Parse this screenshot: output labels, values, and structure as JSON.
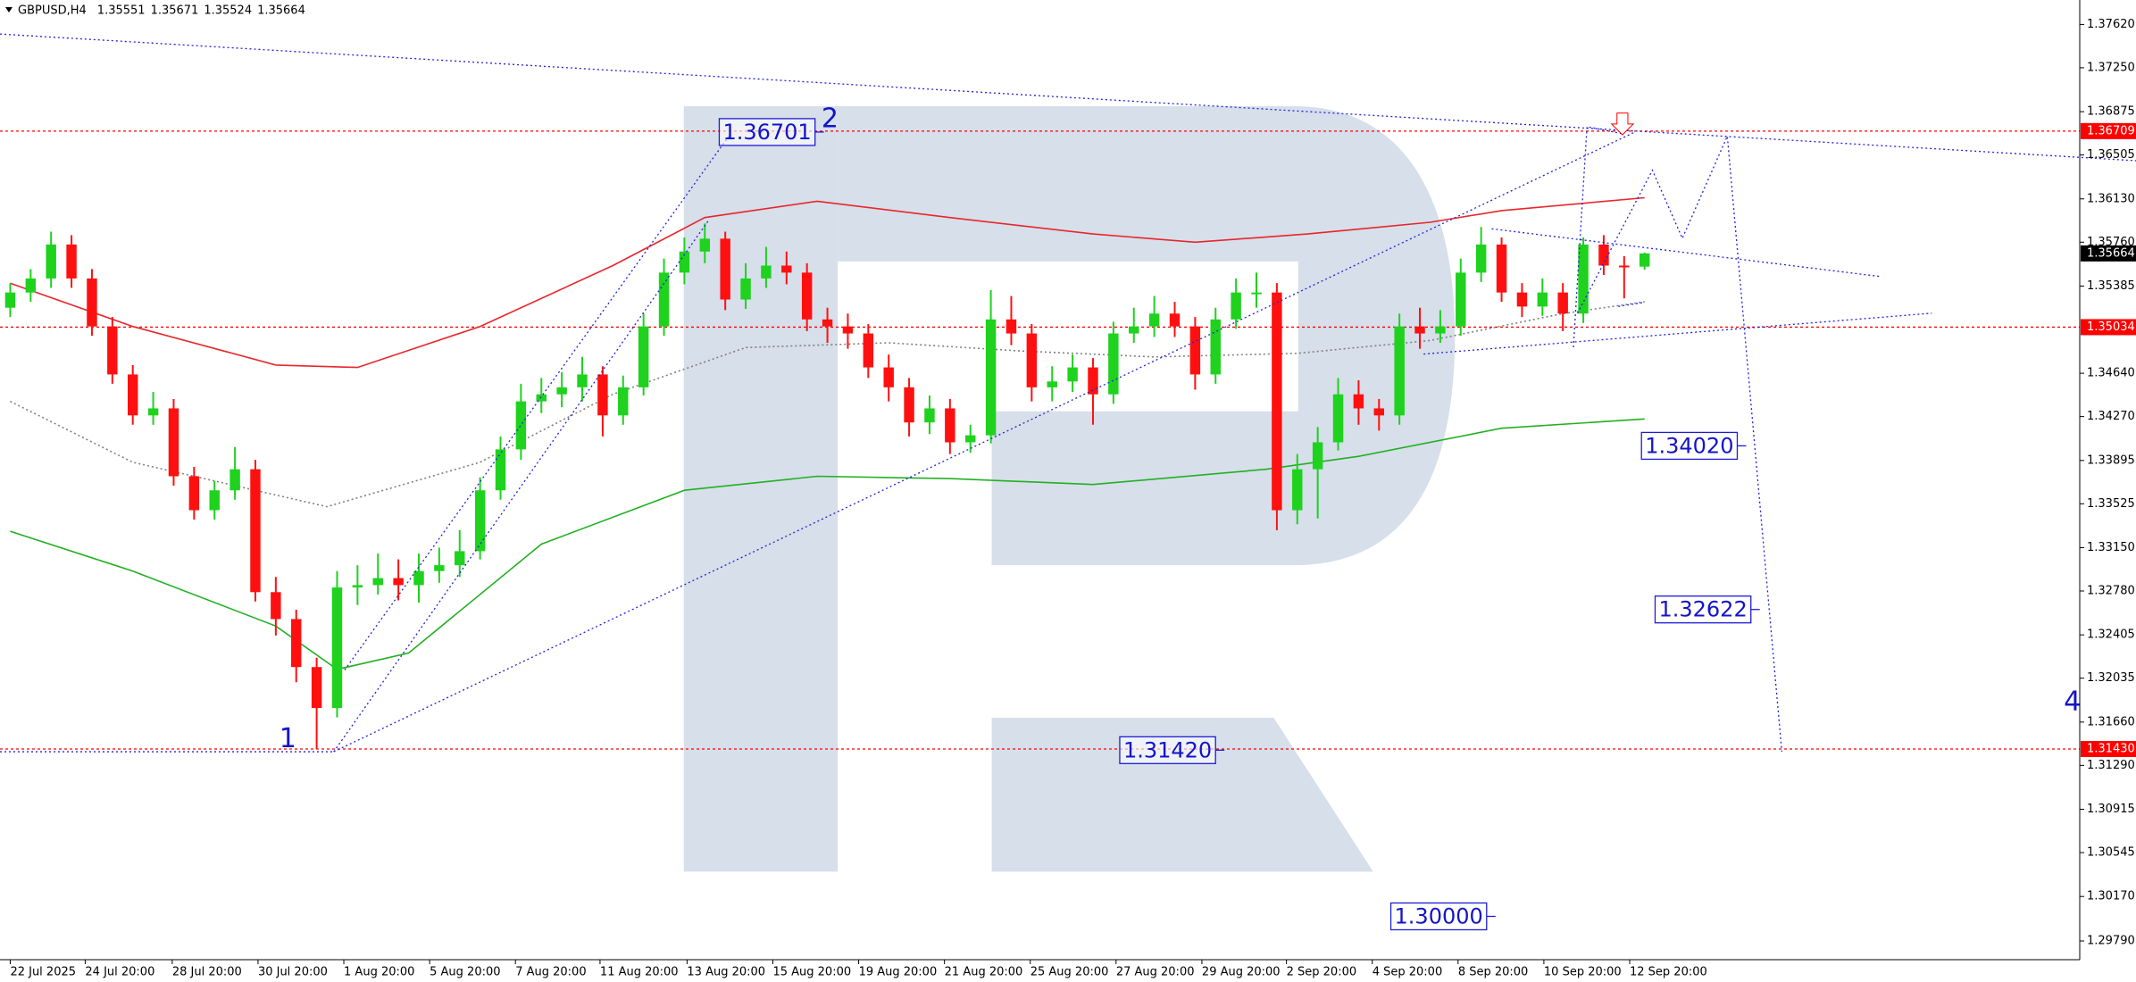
{
  "chart_data": {
    "type": "candlestick",
    "symbol": "GBPUSD,H4",
    "up_color": "#1ed21e",
    "down_color": "#ff1010",
    "open": [
      1.352,
      1.3533,
      1.3545,
      1.3574,
      1.3545,
      1.3504,
      1.3463,
      1.3428,
      1.3434,
      1.3376,
      1.3347,
      1.3364,
      1.3382,
      1.3277,
      1.3254,
      1.3213,
      1.3178,
      1.3281,
      1.3283,
      1.3289,
      1.3283,
      1.3295,
      1.33,
      1.3312,
      1.3364,
      1.3399,
      1.344,
      1.3446,
      1.3452,
      1.3463,
      1.3428,
      1.3452,
      1.3504,
      1.355,
      1.3568,
      1.3579,
      1.3527,
      1.3545,
      1.3556,
      1.355,
      1.351,
      1.3504,
      1.3498,
      1.3469,
      1.3452,
      1.3422,
      1.3434,
      1.3405,
      1.3411,
      1.351,
      1.3498,
      1.3452,
      1.3457,
      1.3469,
      1.3446,
      1.3498,
      1.3504,
      1.3515,
      1.3504,
      1.3463,
      1.351,
      1.3533,
      1.3533,
      1.3347,
      1.3382,
      1.3405,
      1.3446,
      1.3434,
      1.3428,
      1.3504,
      1.3498,
      1.3504,
      1.355,
      1.3574,
      1.3533,
      1.3521,
      1.3533,
      1.3515,
      1.3574,
      1.3556,
      1.35551
    ],
    "high": [
      1.3541,
      1.3553,
      1.3585,
      1.3582,
      1.3553,
      1.3512,
      1.3471,
      1.3448,
      1.3442,
      1.3384,
      1.3372,
      1.3401,
      1.339,
      1.329,
      1.3262,
      1.3221,
      1.3295,
      1.33,
      1.331,
      1.3305,
      1.331,
      1.3315,
      1.333,
      1.3375,
      1.341,
      1.3455,
      1.346,
      1.3465,
      1.3478,
      1.347,
      1.3462,
      1.3515,
      1.3562,
      1.358,
      1.3592,
      1.3585,
      1.3558,
      1.3572,
      1.3568,
      1.3558,
      1.352,
      1.3515,
      1.3506,
      1.348,
      1.346,
      1.3445,
      1.3442,
      1.342,
      1.3535,
      1.353,
      1.3506,
      1.347,
      1.348,
      1.3477,
      1.3508,
      1.352,
      1.353,
      1.3525,
      1.3512,
      1.352,
      1.3545,
      1.355,
      1.3541,
      1.3395,
      1.3418,
      1.346,
      1.3458,
      1.3442,
      1.3515,
      1.352,
      1.3518,
      1.3562,
      1.3589,
      1.358,
      1.3541,
      1.3545,
      1.3541,
      1.358,
      1.3582,
      1.3564,
      1.35671
    ],
    "low": [
      1.3512,
      1.3525,
      1.3537,
      1.3537,
      1.3496,
      1.3455,
      1.342,
      1.342,
      1.3368,
      1.3339,
      1.3339,
      1.3356,
      1.3269,
      1.324,
      1.32,
      1.3143,
      1.317,
      1.3266,
      1.3275,
      1.327,
      1.3268,
      1.3285,
      1.329,
      1.3305,
      1.3356,
      1.339,
      1.343,
      1.3435,
      1.344,
      1.341,
      1.342,
      1.3445,
      1.3496,
      1.354,
      1.3558,
      1.3518,
      1.3519,
      1.3537,
      1.354,
      1.35,
      1.349,
      1.3485,
      1.346,
      1.344,
      1.341,
      1.3412,
      1.3395,
      1.3396,
      1.3404,
      1.3488,
      1.344,
      1.344,
      1.3448,
      1.342,
      1.3438,
      1.349,
      1.3495,
      1.3495,
      1.345,
      1.3455,
      1.3502,
      1.352,
      1.333,
      1.3335,
      1.334,
      1.3398,
      1.342,
      1.3415,
      1.342,
      1.3485,
      1.349,
      1.3496,
      1.3542,
      1.3525,
      1.3512,
      1.3513,
      1.35,
      1.3507,
      1.3548,
      1.3528,
      1.35524
    ],
    "close": [
      1.3533,
      1.3545,
      1.3574,
      1.3545,
      1.3504,
      1.3463,
      1.3428,
      1.3434,
      1.3376,
      1.3347,
      1.3364,
      1.3382,
      1.3277,
      1.3254,
      1.3213,
      1.3178,
      1.3281,
      1.3283,
      1.3289,
      1.3283,
      1.3295,
      1.33,
      1.3312,
      1.3364,
      1.3399,
      1.344,
      1.3446,
      1.3452,
      1.3463,
      1.3428,
      1.3452,
      1.3504,
      1.355,
      1.3568,
      1.3579,
      1.3527,
      1.3545,
      1.3556,
      1.355,
      1.351,
      1.3504,
      1.3498,
      1.3469,
      1.3452,
      1.3422,
      1.3434,
      1.3405,
      1.3411,
      1.351,
      1.3498,
      1.3452,
      1.3457,
      1.3469,
      1.3446,
      1.3498,
      1.3504,
      1.3515,
      1.3504,
      1.3463,
      1.351,
      1.3533,
      1.3533,
      1.3347,
      1.3382,
      1.3405,
      1.3446,
      1.3434,
      1.3428,
      1.3504,
      1.3498,
      1.3504,
      1.355,
      1.3574,
      1.3533,
      1.3521,
      1.3533,
      1.3515,
      1.3574,
      1.3556,
      1.3555,
      1.35664
    ],
    "moving_averages": [
      {
        "color": "#e8262b",
        "style": "solid",
        "x": [
          0,
          6,
          13,
          17,
          23,
          29.5,
          34,
          39.5,
          46,
          53,
          58,
          63.5,
          69.5,
          73,
          80
        ],
        "values": [
          1.3541,
          1.3504,
          1.3471,
          1.3469,
          1.3504,
          1.3556,
          1.3597,
          1.3611,
          1.3597,
          1.3583,
          1.3576,
          1.3583,
          1.3593,
          1.3603,
          1.3614
        ]
      },
      {
        "color": "#22b022",
        "style": "solid",
        "x": [
          0,
          6,
          13,
          16,
          19.5,
          26,
          33,
          39.5,
          46,
          53,
          61.5,
          66,
          73,
          80
        ],
        "values": [
          1.3329,
          1.3295,
          1.3248,
          1.3211,
          1.3225,
          1.3318,
          1.3364,
          1.3376,
          1.3374,
          1.3369,
          1.3382,
          1.3393,
          1.3417,
          1.3425
        ]
      },
      {
        "color": "#808080",
        "style": "dotted",
        "x": [
          0,
          6,
          15.5,
          23,
          29.5,
          36,
          43,
          49.5,
          56,
          63,
          69.5,
          76,
          80
        ],
        "values": [
          1.344,
          1.3388,
          1.335,
          1.3388,
          1.3446,
          1.3486,
          1.349,
          1.3483,
          1.3478,
          1.3481,
          1.3492,
          1.3515,
          1.3525
        ]
      }
    ],
    "levels": [
      {
        "value": 1.36709,
        "color": "#ff0000"
      },
      {
        "value": 1.35034,
        "color": "#ff0000"
      },
      {
        "value": 1.3143,
        "label": "1.31430",
        "color": "#ff0000"
      }
    ],
    "current_price_color": "#000000",
    "annotations": [
      {
        "value": 1.36701,
        "label": "1.36701"
      },
      {
        "value": 1.3402,
        "label": "1.34020"
      },
      {
        "value": 1.32622,
        "label": "1.32622"
      },
      {
        "value": 1.3142,
        "label": "1.31420"
      },
      {
        "value": 1.3,
        "label": "1.30000"
      }
    ],
    "waves": [
      "1",
      "2",
      "4"
    ],
    "xlim": [
      -0.5,
      101.3
    ],
    "ylim": [
      1.2963,
      1.37829
    ],
    "yticks": [
      {
        "value": 1.3762,
        "label": "1.37620"
      },
      {
        "value": 1.3725,
        "label": "1.37250"
      },
      1.36875,
      1.36505,
      {
        "value": 1.3613,
        "label": "1.36130"
      },
      {
        "value": 1.3576,
        "label": "1.35760"
      },
      1.35385,
      {
        "value": 1.3464,
        "label": "1.34640"
      },
      {
        "value": 1.3427,
        "label": "1.34270"
      },
      1.33895,
      1.33525,
      {
        "value": 1.3315,
        "label": "1.33150"
      },
      {
        "value": 1.3278,
        "label": "1.32780"
      },
      1.32405,
      1.32035,
      {
        "value": 1.3166,
        "label": "1.31660"
      },
      {
        "value": 1.3129,
        "label": "1.31290"
      },
      1.30915,
      1.30545,
      {
        "value": 1.3017,
        "label": "1.30170"
      },
      {
        "value": 1.2979,
        "label": "1.29790"
      }
    ],
    "xticks": [
      {
        "value": 0,
        "label": "22 Jul 2025"
      },
      {
        "value": 3.67,
        "label": "24 Jul 20:00"
      },
      {
        "value": 7.93,
        "label": "28 Jul 20:00"
      },
      {
        "value": 12.13,
        "label": "30 Jul 20:00"
      },
      {
        "value": 16.33,
        "label": "1 Aug 20:00"
      },
      {
        "value": 20.53,
        "label": "5 Aug 20:00"
      },
      {
        "value": 24.73,
        "label": "7 Aug 20:00"
      },
      {
        "value": 28.87,
        "label": "11 Aug 20:00"
      },
      {
        "value": 33.13,
        "label": "13 Aug 20:00"
      },
      {
        "value": 37.33,
        "label": "15 Aug 20:00"
      },
      {
        "value": 41.53,
        "label": "19 Aug 20:00"
      },
      {
        "value": 45.73,
        "label": "21 Aug 20:00"
      },
      {
        "value": 49.93,
        "label": "25 Aug 20:00"
      },
      {
        "value": 54.13,
        "label": "27 Aug 20:00"
      },
      {
        "value": 58.33,
        "label": "29 Aug 20:00"
      },
      {
        "value": 62.47,
        "label": "2 Sep 20:00"
      },
      {
        "value": 66.67,
        "label": "4 Sep 20:00"
      },
      {
        "value": 70.87,
        "label": "8 Sep 20:00"
      },
      {
        "value": 75.07,
        "label": "10 Sep 20:00"
      },
      {
        "value": 79.27,
        "label": "12 Sep 20:00"
      }
    ]
  }
}
